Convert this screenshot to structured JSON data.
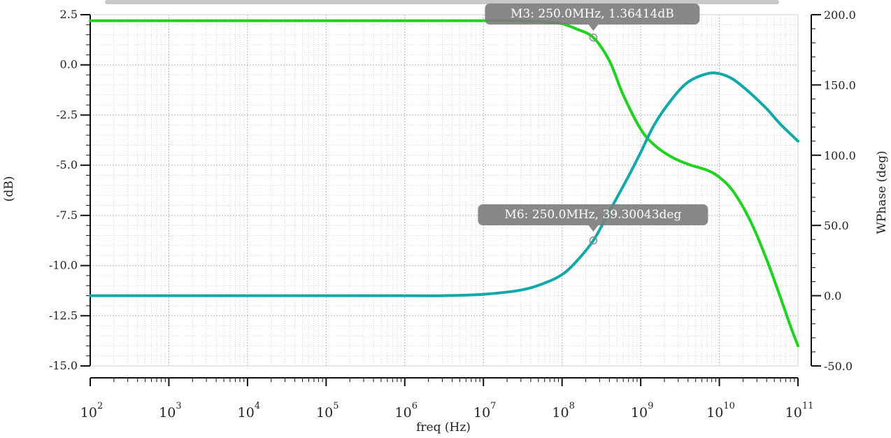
{
  "chart_data": {
    "type": "line",
    "xscale": "log",
    "xlabel": "freq (Hz)",
    "ylabel_left": "(dB)",
    "ylabel_right": "WPhase (deg)",
    "xlim": [
      100,
      100000000000
    ],
    "ylim_left": [
      -15.0,
      2.5
    ],
    "ylim_right": [
      -50.0,
      200.0
    ],
    "x_ticks": [
      {
        "base": "10",
        "exp": "2"
      },
      {
        "base": "10",
        "exp": "3"
      },
      {
        "base": "10",
        "exp": "4"
      },
      {
        "base": "10",
        "exp": "5"
      },
      {
        "base": "10",
        "exp": "6"
      },
      {
        "base": "10",
        "exp": "7"
      },
      {
        "base": "10",
        "exp": "8"
      },
      {
        "base": "10",
        "exp": "9"
      },
      {
        "base": "10",
        "exp": "10"
      },
      {
        "base": "10",
        "exp": "11"
      }
    ],
    "y_ticks_left": [
      "2.5",
      "0.0",
      "-2.5",
      "-5.0",
      "-7.5",
      "-10.0",
      "-12.5",
      "-15.0"
    ],
    "y_ticks_right": [
      "200.0",
      "150.0",
      "100.0",
      "50.0",
      "0.0",
      "-50.0"
    ],
    "grid": true,
    "series": [
      {
        "axis": "left",
        "color": "#1fd21f",
        "x": [
          100,
          10000,
          1000000,
          10000000,
          30000000,
          60000000,
          100000000,
          150000000,
          250000000,
          400000000,
          600000000,
          1000000000,
          1500000000,
          2500000000,
          4000000000,
          7000000000,
          10000000000,
          15000000000,
          25000000000,
          40000000000,
          60000000000,
          80000000000,
          100000000000
        ],
        "y": [
          2.2,
          2.2,
          2.2,
          2.2,
          2.19,
          2.15,
          2.05,
          1.8,
          1.36,
          0.2,
          -1.5,
          -3.2,
          -4.0,
          -4.6,
          -4.95,
          -5.25,
          -5.6,
          -6.3,
          -7.8,
          -9.7,
          -11.6,
          -13.0,
          -14.0
        ]
      },
      {
        "axis": "right",
        "color": "#10a8a8",
        "x": [
          100,
          1000000,
          3000000,
          10000000,
          30000000,
          60000000,
          100000000,
          150000000,
          250000000,
          400000000,
          700000000,
          1000000000,
          1500000000,
          2500000000,
          4000000000,
          7000000000,
          10000000000,
          15000000000,
          25000000000,
          40000000000,
          60000000000,
          100000000000
        ],
        "y": [
          0,
          0,
          0,
          1,
          4,
          9,
          15,
          24,
          39.3,
          60,
          85,
          102,
          122,
          140,
          152,
          158,
          158,
          154,
          144,
          133,
          122,
          110
        ]
      }
    ],
    "markers": [
      {
        "label": "M3: 250.0MHz, 1.36414dB",
        "x": 250000000,
        "y": 1.36414,
        "axis": "left"
      },
      {
        "label": "M6: 250.0MHz, 39.30043deg",
        "x": 250000000,
        "y": 39.30043,
        "axis": "right"
      }
    ]
  }
}
